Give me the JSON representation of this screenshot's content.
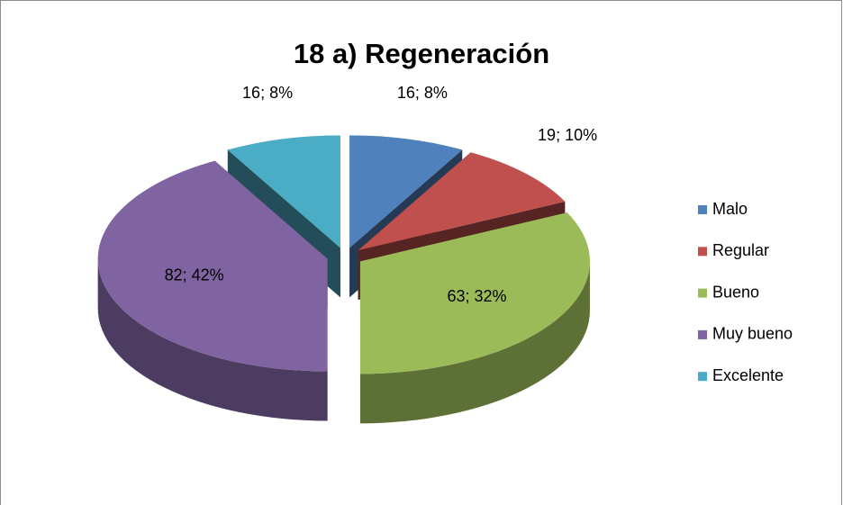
{
  "chart_data": {
    "type": "pie3d",
    "title": "18 a) Regeneración",
    "categories": [
      "Malo",
      "Regular",
      "Bueno",
      "Muy bueno",
      "Excelente"
    ],
    "values": [
      16,
      19,
      63,
      82,
      16
    ],
    "value_labels": [
      "16; 8%",
      "19; 10%",
      "63; 32%",
      "82; 42%",
      "16; 8%"
    ],
    "colors": [
      "#4f81bd",
      "#c0504d",
      "#9bbb59",
      "#8064a2",
      "#4bacc6"
    ],
    "legend": "right"
  }
}
